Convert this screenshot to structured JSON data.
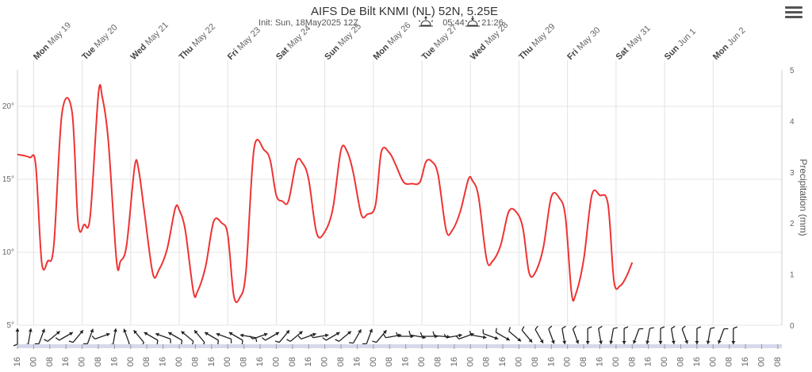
{
  "chart_data": {
    "type": "line",
    "title": "AIFS De Bilt KNMI (NL) 52N, 5.25E",
    "subtitle": {
      "init": "Init: Sun, 18May2025 12Z",
      "sunrise": "05:44",
      "sunset": "21:26"
    },
    "x_range": [
      "2025-05-18T16:00",
      "2025-06-03T10:00"
    ],
    "day_labels": [
      {
        "dow": "Mon",
        "date": "May 19",
        "t": "2025-05-19T00:00"
      },
      {
        "dow": "Tue",
        "date": "May 20",
        "t": "2025-05-20T00:00"
      },
      {
        "dow": "Wed",
        "date": "May 21",
        "t": "2025-05-21T00:00"
      },
      {
        "dow": "Thu",
        "date": "May 22",
        "t": "2025-05-22T00:00"
      },
      {
        "dow": "Fri",
        "date": "May 23",
        "t": "2025-05-23T00:00"
      },
      {
        "dow": "Sat",
        "date": "May 24",
        "t": "2025-05-24T00:00"
      },
      {
        "dow": "Sun",
        "date": "May 25",
        "t": "2025-05-25T00:00"
      },
      {
        "dow": "Mon",
        "date": "May 26",
        "t": "2025-05-26T00:00"
      },
      {
        "dow": "Tue",
        "date": "May 27",
        "t": "2025-05-27T00:00"
      },
      {
        "dow": "Wed",
        "date": "May 28",
        "t": "2025-05-28T00:00"
      },
      {
        "dow": "Thu",
        "date": "May 29",
        "t": "2025-05-29T00:00"
      },
      {
        "dow": "Fri",
        "date": "May 30",
        "t": "2025-05-30T00:00"
      },
      {
        "dow": "Sat",
        "date": "May 31",
        "t": "2025-05-31T00:00"
      },
      {
        "dow": "Sun",
        "date": "Jun 1",
        "t": "2025-06-01T00:00"
      },
      {
        "dow": "Mon",
        "date": "Jun 2",
        "t": "2025-06-02T00:00"
      }
    ],
    "hour_ticks": [
      "16",
      "00",
      "08",
      "16",
      "00",
      "08",
      "16",
      "00",
      "08",
      "16",
      "00",
      "08",
      "16",
      "00",
      "08",
      "16",
      "00",
      "08",
      "16",
      "00",
      "08",
      "16",
      "00",
      "08",
      "16",
      "00",
      "08",
      "16",
      "00",
      "08",
      "16",
      "00",
      "08",
      "16",
      "00",
      "08",
      "16",
      "00",
      "08",
      "16",
      "00",
      "08",
      "16",
      "00",
      "08",
      "16",
      "00",
      "08"
    ],
    "y_left": {
      "min": 5,
      "max": 22.5,
      "ticks": [
        "5°",
        "10°",
        "15°",
        "20°"
      ],
      "tick_values": [
        5,
        10,
        15,
        20
      ]
    },
    "y_right": {
      "min": 0,
      "max": 5,
      "ticks": [
        "0",
        "1",
        "2",
        "3",
        "4",
        "5"
      ],
      "label": "Precipitation (mm)"
    },
    "grid": true,
    "series": [
      {
        "name": "",
        "color": "#ee3333",
        "points": [
          [
            "2025-05-18T16:00",
            16.7
          ],
          [
            "2025-05-18T22:00",
            16.5
          ],
          [
            "2025-05-19T01:00",
            16.0
          ],
          [
            "2025-05-19T04:00",
            9.3
          ],
          [
            "2025-05-19T07:00",
            9.4
          ],
          [
            "2025-05-19T10:00",
            10.5
          ],
          [
            "2025-05-19T14:00",
            19.5
          ],
          [
            "2025-05-19T19:00",
            19.6
          ],
          [
            "2025-05-19T22:00",
            12.0
          ],
          [
            "2025-05-20T01:00",
            11.9
          ],
          [
            "2025-05-20T04:00",
            12.5
          ],
          [
            "2025-05-20T08:00",
            20.8
          ],
          [
            "2025-05-20T10:00",
            20.6
          ],
          [
            "2025-05-20T13:00",
            17.5
          ],
          [
            "2025-05-20T17:00",
            9.4
          ],
          [
            "2025-05-20T19:00",
            9.4
          ],
          [
            "2025-05-20T22:00",
            10.5
          ],
          [
            "2025-05-21T02:00",
            15.9
          ],
          [
            "2025-05-21T04:00",
            15.6
          ],
          [
            "2025-05-21T07:00",
            12.5
          ],
          [
            "2025-05-21T11:00",
            8.5
          ],
          [
            "2025-05-21T14:00",
            8.8
          ],
          [
            "2025-05-21T18:00",
            10.2
          ],
          [
            "2025-05-21T22:00",
            13.0
          ],
          [
            "2025-05-22T00:00",
            12.9
          ],
          [
            "2025-05-22T03:00",
            11.5
          ],
          [
            "2025-05-22T07:00",
            7.3
          ],
          [
            "2025-05-22T09:00",
            7.3
          ],
          [
            "2025-05-22T13:00",
            9.0
          ],
          [
            "2025-05-22T17:00",
            12.1
          ],
          [
            "2025-05-22T21:00",
            12.0
          ],
          [
            "2025-05-23T00:00",
            11.2
          ],
          [
            "2025-05-23T03:00",
            7.0
          ],
          [
            "2025-05-23T06:00",
            6.9
          ],
          [
            "2025-05-23T09:00",
            8.7
          ],
          [
            "2025-05-23T13:00",
            17.1
          ],
          [
            "2025-05-23T18:00",
            17.0
          ],
          [
            "2025-05-23T21:00",
            16.3
          ],
          [
            "2025-05-24T00:00",
            13.9
          ],
          [
            "2025-05-24T03:00",
            13.5
          ],
          [
            "2025-05-24T06:00",
            13.5
          ],
          [
            "2025-05-24T10:00",
            16.2
          ],
          [
            "2025-05-24T13:00",
            16.1
          ],
          [
            "2025-05-24T16:00",
            15.0
          ],
          [
            "2025-05-24T20:00",
            11.3
          ],
          [
            "2025-05-25T00:00",
            11.4
          ],
          [
            "2025-05-25T04:00",
            13.0
          ],
          [
            "2025-05-25T08:00",
            17.0
          ],
          [
            "2025-05-25T11:00",
            16.9
          ],
          [
            "2025-05-25T14:00",
            15.5
          ],
          [
            "2025-05-25T18:00",
            12.6
          ],
          [
            "2025-05-25T21:00",
            12.6
          ],
          [
            "2025-05-26T01:00",
            13.2
          ],
          [
            "2025-05-26T04:00",
            16.9
          ],
          [
            "2025-05-26T08:00",
            16.8
          ],
          [
            "2025-05-26T11:00",
            16.0
          ],
          [
            "2025-05-26T15:00",
            14.8
          ],
          [
            "2025-05-26T19:00",
            14.7
          ],
          [
            "2025-05-26T23:00",
            14.8
          ],
          [
            "2025-05-27T02:00",
            16.2
          ],
          [
            "2025-05-27T05:00",
            16.2
          ],
          [
            "2025-05-27T08:00",
            15.3
          ],
          [
            "2025-05-27T12:00",
            11.5
          ],
          [
            "2025-05-27T15:00",
            11.5
          ],
          [
            "2025-05-27T19:00",
            12.8
          ],
          [
            "2025-05-27T23:00",
            15.0
          ],
          [
            "2025-05-28T01:00",
            14.9
          ],
          [
            "2025-05-28T04:00",
            13.8
          ],
          [
            "2025-05-28T08:00",
            9.5
          ],
          [
            "2025-05-28T11:00",
            9.4
          ],
          [
            "2025-05-28T15:00",
            10.5
          ],
          [
            "2025-05-28T19:00",
            12.8
          ],
          [
            "2025-05-28T23:00",
            12.7
          ],
          [
            "2025-05-29T02:00",
            11.6
          ],
          [
            "2025-05-29T05:00",
            8.6
          ],
          [
            "2025-05-29T08:00",
            8.6
          ],
          [
            "2025-05-29T12:00",
            10.3
          ],
          [
            "2025-05-29T16:00",
            13.8
          ],
          [
            "2025-05-29T20:00",
            13.7
          ],
          [
            "2025-05-29T23:00",
            12.4
          ],
          [
            "2025-05-30T02:00",
            7.2
          ],
          [
            "2025-05-30T04:00",
            7.1
          ],
          [
            "2025-05-30T08:00",
            9.5
          ],
          [
            "2025-05-30T12:00",
            13.9
          ],
          [
            "2025-05-30T16:00",
            13.9
          ],
          [
            "2025-05-30T20:00",
            13.3
          ],
          [
            "2025-05-30T23:00",
            8.0
          ],
          [
            "2025-05-31T02:00",
            7.7
          ],
          [
            "2025-05-31T05:00",
            8.3
          ],
          [
            "2025-05-31T08:00",
            9.3
          ]
        ]
      }
    ],
    "wind_barbs": [
      {
        "t": "2025-05-18T16:00",
        "dir": 180
      },
      {
        "t": "2025-05-18T22:00",
        "dir": 190
      },
      {
        "t": "2025-05-19T04:00",
        "dir": 200
      },
      {
        "t": "2025-05-19T10:00",
        "dir": 230
      },
      {
        "t": "2025-05-19T16:00",
        "dir": 240
      },
      {
        "t": "2025-05-19T22:00",
        "dir": 220
      },
      {
        "t": "2025-05-20T04:00",
        "dir": 200
      },
      {
        "t": "2025-05-20T10:00",
        "dir": 250
      },
      {
        "t": "2025-05-20T16:00",
        "dir": 190
      },
      {
        "t": "2025-05-20T22:00",
        "dir": 160
      },
      {
        "t": "2025-05-21T04:00",
        "dir": 140
      },
      {
        "t": "2025-05-21T10:00",
        "dir": 120
      },
      {
        "t": "2025-05-21T16:00",
        "dir": 110
      },
      {
        "t": "2025-05-21T22:00",
        "dir": 120
      },
      {
        "t": "2025-05-22T04:00",
        "dir": 130
      },
      {
        "t": "2025-05-22T10:00",
        "dir": 140
      },
      {
        "t": "2025-05-22T16:00",
        "dir": 120
      },
      {
        "t": "2025-05-22T22:00",
        "dir": 110
      },
      {
        "t": "2025-05-23T04:00",
        "dir": 120
      },
      {
        "t": "2025-05-23T10:00",
        "dir": 100
      },
      {
        "t": "2025-05-23T16:00",
        "dir": 250
      },
      {
        "t": "2025-05-23T22:00",
        "dir": 240
      },
      {
        "t": "2025-05-24T04:00",
        "dir": 220
      },
      {
        "t": "2025-05-24T10:00",
        "dir": 230
      },
      {
        "t": "2025-05-24T16:00",
        "dir": 250
      },
      {
        "t": "2025-05-24T22:00",
        "dir": 260
      },
      {
        "t": "2025-05-25T04:00",
        "dir": 240
      },
      {
        "t": "2025-05-25T10:00",
        "dir": 230
      },
      {
        "t": "2025-05-25T16:00",
        "dir": 210
      },
      {
        "t": "2025-05-25T22:00",
        "dir": 200
      },
      {
        "t": "2025-05-26T04:00",
        "dir": 220
      },
      {
        "t": "2025-05-26T10:00",
        "dir": 260
      },
      {
        "t": "2025-05-26T16:00",
        "dir": 270
      },
      {
        "t": "2025-05-26T22:00",
        "dir": 280
      },
      {
        "t": "2025-05-27T04:00",
        "dir": 270
      },
      {
        "t": "2025-05-27T10:00",
        "dir": 275
      },
      {
        "t": "2025-05-27T16:00",
        "dir": 260
      },
      {
        "t": "2025-05-27T22:00",
        "dir": 250
      },
      {
        "t": "2025-05-28T04:00",
        "dir": 280
      },
      {
        "t": "2025-05-28T10:00",
        "dir": 290
      },
      {
        "t": "2025-05-28T16:00",
        "dir": 300
      },
      {
        "t": "2025-05-28T22:00",
        "dir": 310
      },
      {
        "t": "2025-05-29T04:00",
        "dir": 320
      },
      {
        "t": "2025-05-29T10:00",
        "dir": 330
      },
      {
        "t": "2025-05-29T16:00",
        "dir": 340
      },
      {
        "t": "2025-05-29T22:00",
        "dir": 350
      },
      {
        "t": "2025-05-30T04:00",
        "dir": 340
      },
      {
        "t": "2025-05-30T10:00",
        "dir": 0
      },
      {
        "t": "2025-05-30T16:00",
        "dir": 350
      },
      {
        "t": "2025-05-30T22:00",
        "dir": 10
      },
      {
        "t": "2025-05-31T04:00",
        "dir": 0
      },
      {
        "t": "2025-05-31T10:00",
        "dir": 20
      },
      {
        "t": "2025-05-31T16:00",
        "dir": 10
      },
      {
        "t": "2025-05-31T22:00",
        "dir": 0
      },
      {
        "t": "2025-06-01T04:00",
        "dir": 350
      },
      {
        "t": "2025-06-01T10:00",
        "dir": 340
      },
      {
        "t": "2025-06-01T16:00",
        "dir": 0
      },
      {
        "t": "2025-06-01T22:00",
        "dir": 10
      },
      {
        "t": "2025-06-02T04:00",
        "dir": 20
      },
      {
        "t": "2025-06-02T10:00",
        "dir": 0
      }
    ]
  },
  "menu": {
    "icon": "hamburger-menu-icon"
  }
}
